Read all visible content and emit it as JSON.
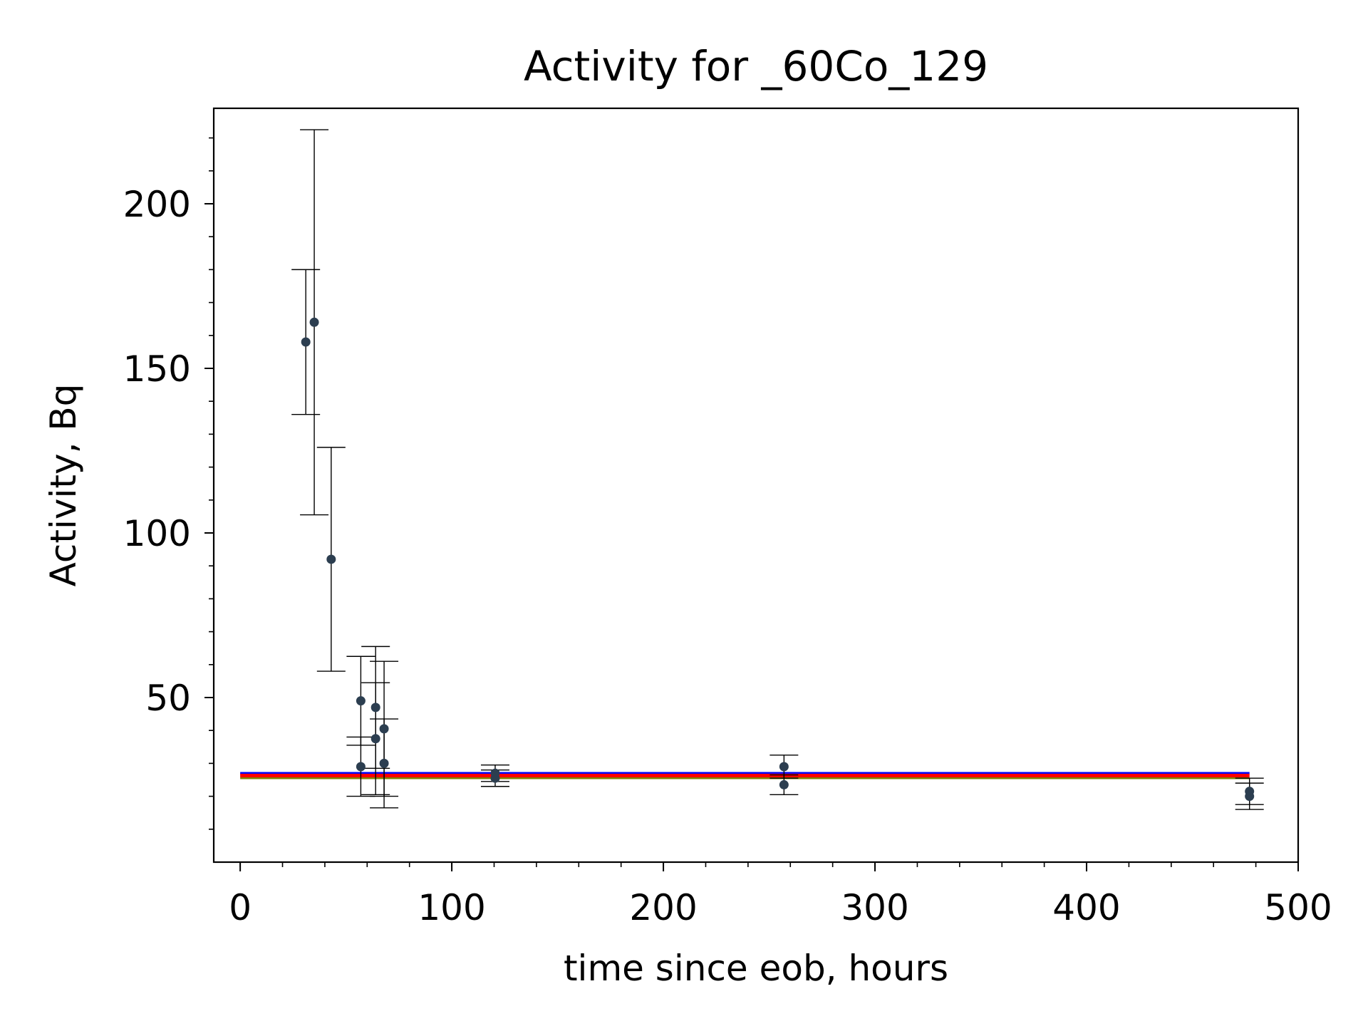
{
  "chart_data": {
    "type": "scatter",
    "title": "Activity for _60Co_129",
    "xlabel": "time since eob, hours",
    "ylabel": "Activity, Bq",
    "xlim": [
      -12.5,
      500
    ],
    "ylim": [
      0,
      229
    ],
    "x_ticks": [
      0,
      100,
      200,
      300,
      400,
      500
    ],
    "x_tick_labels": [
      "0",
      "100",
      "200",
      "300",
      "400",
      "500"
    ],
    "x_minor_step": 20,
    "y_ticks": [
      50,
      100,
      150,
      200
    ],
    "y_tick_labels": [
      "50",
      "100",
      "150",
      "200"
    ],
    "y_minor_step": 10,
    "grid": false,
    "marker_color": "#2c3e50",
    "errorbar_color": "#000000",
    "points": [
      {
        "x": 31,
        "y": 158,
        "yerr": 22
      },
      {
        "x": 35,
        "y": 164,
        "yerr": 58.5
      },
      {
        "x": 43,
        "y": 92,
        "yerr": 34
      },
      {
        "x": 57,
        "y": 49,
        "yerr": 13.5
      },
      {
        "x": 57,
        "y": 29,
        "yerr": 9
      },
      {
        "x": 64,
        "y": 47,
        "yerr": 18.5
      },
      {
        "x": 64,
        "y": 37.5,
        "yerr": 17
      },
      {
        "x": 68,
        "y": 40.5,
        "yerr": 20.5
      },
      {
        "x": 68,
        "y": 30,
        "yerr": 13.5
      },
      {
        "x": 120.5,
        "y": 27,
        "yerr": 2.5
      },
      {
        "x": 120.5,
        "y": 25.5,
        "yerr": 2.5
      },
      {
        "x": 257,
        "y": 29,
        "yerr": 3.5
      },
      {
        "x": 257,
        "y": 23.5,
        "yerr": 3
      },
      {
        "x": 477,
        "y": 21.5,
        "yerr": 4
      },
      {
        "x": 477,
        "y": 20,
        "yerr": 4
      }
    ],
    "fit_lines": [
      {
        "color": "#808000",
        "y": 25.5,
        "x_range": [
          0,
          477
        ]
      },
      {
        "color": "#0000ff",
        "y": 27.0,
        "x_range": [
          0,
          477
        ]
      },
      {
        "color": "#ff0000",
        "y": 26.3,
        "x_range": [
          0,
          477
        ]
      }
    ]
  }
}
